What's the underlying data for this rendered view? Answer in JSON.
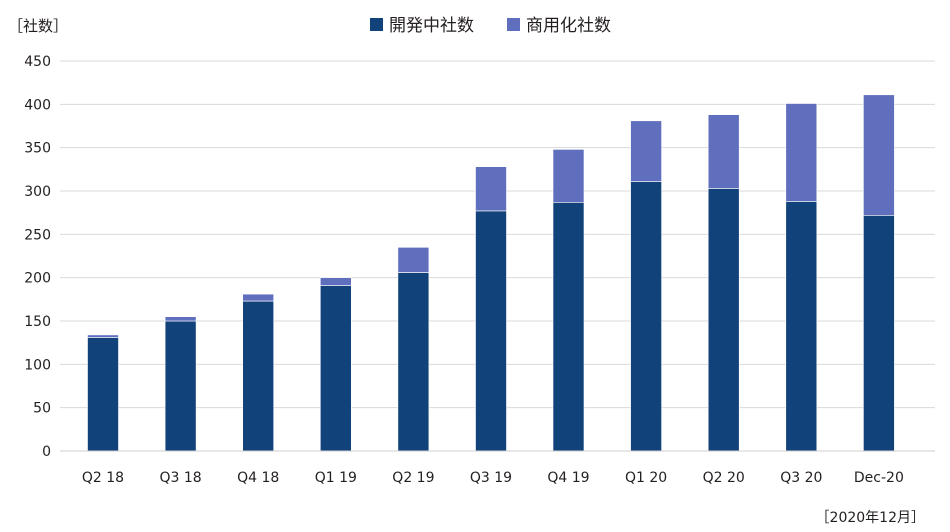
{
  "chart_data": {
    "type": "bar",
    "stacked": true,
    "title": "",
    "xlabel": "",
    "ylabel": "",
    "unit_label": "［社数］",
    "note": "［2020年12月］",
    "categories": [
      "Q2 18",
      "Q3 18",
      "Q4 18",
      "Q1 19",
      "Q2 19",
      "Q3 19",
      "Q4 19",
      "Q1 20",
      "Q2 20",
      "Q3 20",
      "Dec-20"
    ],
    "series": [
      {
        "name": "開発中社数",
        "color": "#12427a",
        "values": [
          131,
          150,
          173,
          191,
          206,
          277,
          287,
          311,
          303,
          288,
          272
        ]
      },
      {
        "name": "商用化社数",
        "color": "#5f6fbe",
        "values": [
          3,
          5,
          8,
          9,
          29,
          51,
          61,
          70,
          85,
          113,
          139
        ]
      }
    ],
    "ylim": [
      0,
      450
    ],
    "yticks": [
      0,
      50,
      100,
      150,
      200,
      250,
      300,
      350,
      400,
      450
    ],
    "grid": true,
    "legend_position": "top-center"
  }
}
